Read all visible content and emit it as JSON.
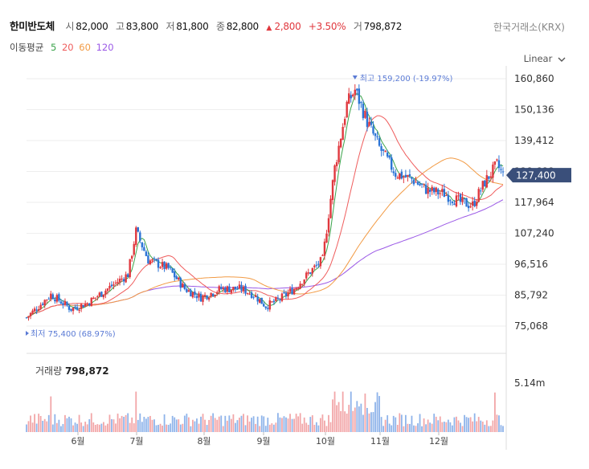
{
  "header": {
    "name": "한미반도체",
    "open_label": "시",
    "open": "82,000",
    "high_label": "고",
    "high": "83,800",
    "low_label": "저",
    "low": "81,800",
    "close_label": "종",
    "close": "82,800",
    "change_arrow": "▲",
    "change": "2,800",
    "change_pct": "+3.50%",
    "volume_label": "거",
    "volume": "798,872"
  },
  "exchange": "한국거래소(KRX)",
  "moving_average": {
    "label": "이동평균",
    "periods": [
      "5",
      "20",
      "60",
      "120"
    ],
    "colors": [
      "#3aa34a",
      "#ef5d5d",
      "#f29b45",
      "#9b59e6"
    ]
  },
  "scale_mode": "Linear",
  "volume_panel": {
    "label": "거래량",
    "value": "798,872",
    "tick": "5.14m"
  },
  "colors": {
    "up": "#e0383e",
    "down": "#2b74d6",
    "current_tag": "#3a4f7a"
  },
  "chart_data": {
    "type": "candlestick",
    "price_axis_ticks": [
      "160,860",
      "150,136",
      "139,412",
      "128,688",
      "117,964",
      "107,240",
      "96,516",
      "85,792",
      "75,068"
    ],
    "ylim": [
      75068,
      160860
    ],
    "x_month_labels": [
      "6월",
      "7월",
      "8월",
      "9월",
      "10월",
      "11월",
      "12월"
    ],
    "current_price": "127,400",
    "high_marker": {
      "label": "최고",
      "value": "159,200",
      "pct": "(-19.97%)"
    },
    "low_marker": {
      "label": "최저",
      "value": "75,400",
      "pct": "(68.97%)"
    },
    "approx_closes_by_month": {
      "5월 말": 80000,
      "6월": 84000,
      "7월 초": 108000,
      "7월 말": 90000,
      "8월": 87000,
      "9월 초": 82000,
      "9월 말": 97000,
      "10월 중순": 158000,
      "11월": 128000,
      "12월 초": 119000,
      "12월 말": 127400
    }
  }
}
